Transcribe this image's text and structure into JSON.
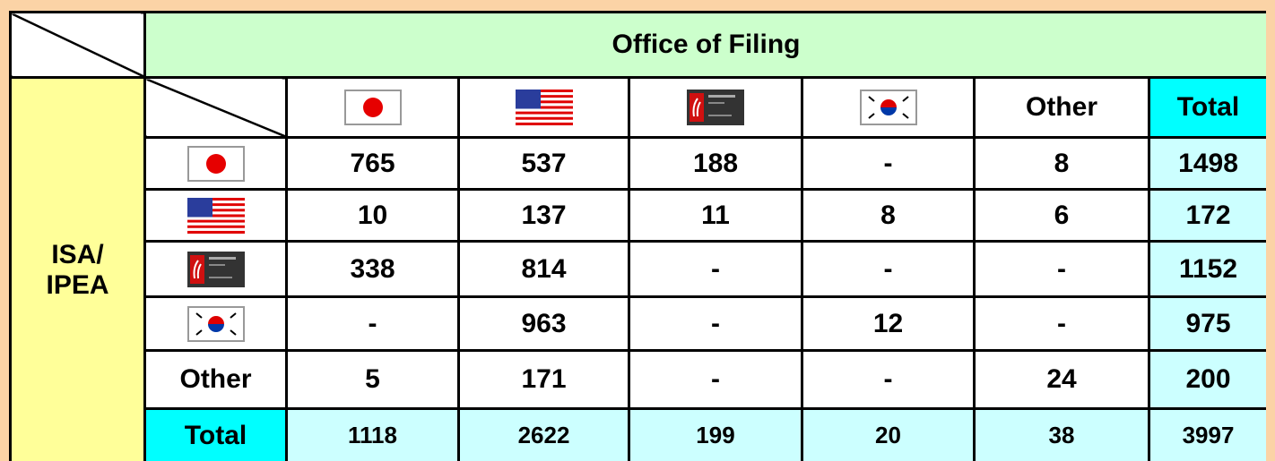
{
  "table": {
    "title": "Office of Filing",
    "group_label": [
      "ISA/",
      "IPEA"
    ],
    "columns": [
      "Other",
      "Total"
    ],
    "rows": [
      {
        "cells": [
          765,
          537,
          188,
          "-",
          8,
          1498
        ]
      },
      {
        "cells": [
          10,
          137,
          11,
          8,
          6,
          172
        ]
      },
      {
        "cells": [
          338,
          814,
          "-",
          "-",
          "-",
          1152
        ]
      },
      {
        "cells": [
          "-",
          963,
          "-",
          12,
          "-",
          975
        ]
      },
      {
        "label": "Other",
        "cells": [
          5,
          171,
          "-",
          "-",
          24,
          200
        ]
      },
      {
        "label": "Total",
        "cells": [
          1118,
          2622,
          199,
          20,
          38,
          3997
        ]
      }
    ]
  }
}
